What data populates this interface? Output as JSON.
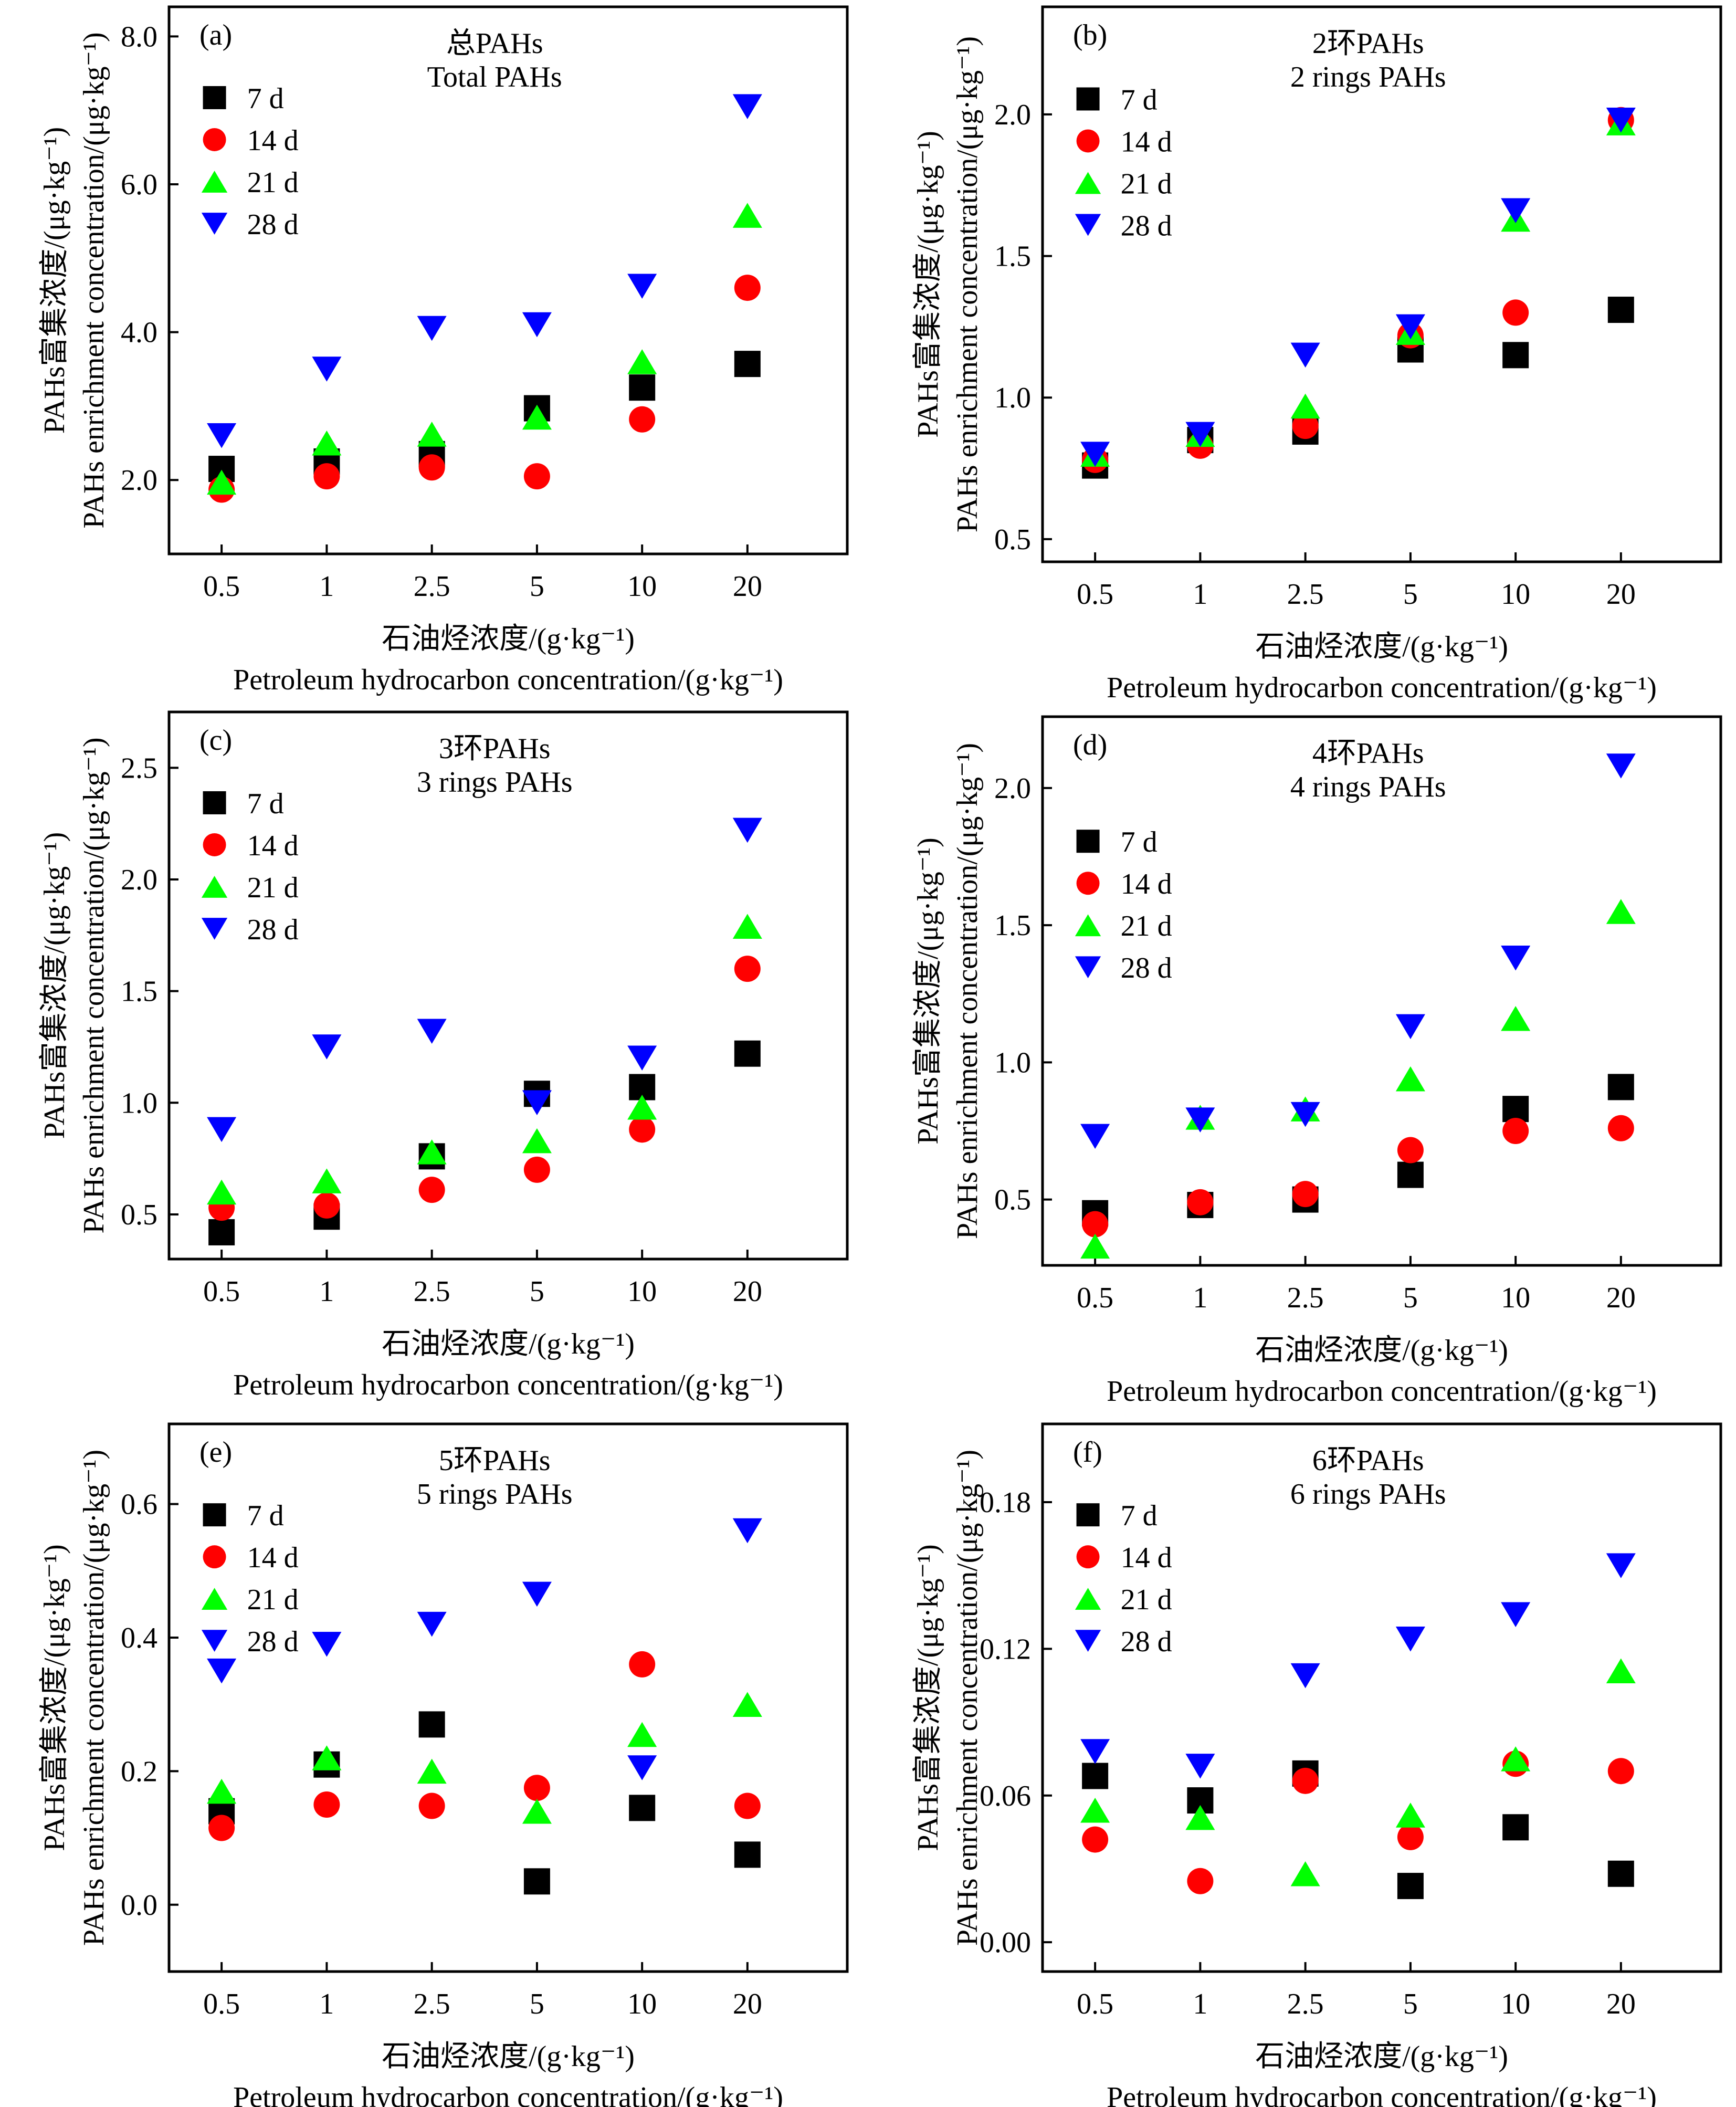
{
  "x_axis": {
    "title_zh": "石油烃浓度/(g·kg⁻¹)",
    "title_en": "Petroleum hydrocarbon concentration/(g·kg⁻¹)"
  },
  "y_axis": {
    "title_zh": "PAHs富集浓度/(μg·kg⁻¹)",
    "title_en": "PAHs enrichment concentration/(μg·kg⁻¹)"
  },
  "legend": [
    "7 d",
    "14 d",
    "21 d",
    "28 d"
  ],
  "series_style": [
    {
      "name": "7 d",
      "marker": "square",
      "color": "#000000"
    },
    {
      "name": "14 d",
      "marker": "circle",
      "color": "#ff0000"
    },
    {
      "name": "21 d",
      "marker": "triangle-up",
      "color": "#00ff00"
    },
    {
      "name": "28 d",
      "marker": "triangle-down",
      "color": "#0000ff"
    }
  ],
  "chart_data": [
    {
      "type": "scatter",
      "panel": "(a)",
      "title_zh": "总PAHs",
      "title_en": "Total PAHs",
      "categories": [
        "0.5",
        "1",
        "2.5",
        "5",
        "10",
        "20"
      ],
      "ylim": [
        1.0,
        8.4
      ],
      "yticks": [
        "2.0",
        "4.0",
        "6.0",
        "8.0"
      ],
      "series": [
        {
          "name": "7 d",
          "values": [
            2.15,
            2.25,
            2.35,
            2.97,
            3.25,
            3.57
          ]
        },
        {
          "name": "14 d",
          "values": [
            1.87,
            2.05,
            2.17,
            2.05,
            2.82,
            4.6
          ]
        },
        {
          "name": "21 d",
          "values": [
            1.97,
            2.5,
            2.62,
            2.85,
            3.6,
            5.58
          ]
        },
        {
          "name": "28 d",
          "values": [
            2.6,
            3.5,
            4.05,
            4.1,
            4.62,
            7.05
          ]
        }
      ]
    },
    {
      "type": "scatter",
      "panel": "(b)",
      "title_zh": "2环PAHs",
      "title_en": "2 rings PAHs",
      "categories": [
        "0.5",
        "1",
        "2.5",
        "5",
        "10",
        "20"
      ],
      "ylim": [
        0.42,
        2.38
      ],
      "yticks": [
        "0.5",
        "1.0",
        "1.5",
        "2.0"
      ],
      "series": [
        {
          "name": "7 d",
          "values": [
            0.76,
            0.85,
            0.88,
            1.17,
            1.15,
            1.31
          ]
        },
        {
          "name": "14 d",
          "values": [
            0.78,
            0.83,
            0.9,
            1.22,
            1.3,
            1.98
          ]
        },
        {
          "name": "21 d",
          "values": [
            0.8,
            0.87,
            0.97,
            1.23,
            1.63,
            1.97
          ]
        },
        {
          "name": "28 d",
          "values": [
            0.8,
            0.87,
            1.15,
            1.25,
            1.66,
            1.98
          ]
        }
      ]
    },
    {
      "type": "scatter",
      "panel": "(c)",
      "title_zh": "3环PAHs",
      "title_en": "3 rings PAHs",
      "categories": [
        "0.5",
        "1",
        "2.5",
        "5",
        "10",
        "20"
      ],
      "ylim": [
        0.3,
        2.75
      ],
      "yticks": [
        "0.5",
        "1.0",
        "1.5",
        "2.0",
        "2.5"
      ],
      "series": [
        {
          "name": "7 d",
          "values": [
            0.42,
            0.49,
            0.76,
            1.04,
            1.07,
            1.22
          ]
        },
        {
          "name": "14 d",
          "values": [
            0.53,
            0.54,
            0.61,
            0.7,
            0.88,
            1.6
          ]
        },
        {
          "name": "21 d",
          "values": [
            0.6,
            0.65,
            0.78,
            0.83,
            0.98,
            1.79
          ]
        },
        {
          "name": "28 d",
          "values": [
            0.88,
            1.25,
            1.32,
            1.0,
            1.2,
            2.22
          ]
        }
      ]
    },
    {
      "type": "scatter",
      "panel": "(d)",
      "title_zh": "4环PAHs",
      "title_en": "4 rings PAHs",
      "categories": [
        "0.5",
        "1",
        "2.5",
        "5",
        "10",
        "20"
      ],
      "ylim": [
        0.26,
        2.26
      ],
      "yticks": [
        "0.5",
        "1.0",
        "1.5",
        "2.0"
      ],
      "series": [
        {
          "name": "7 d",
          "values": [
            0.45,
            0.48,
            0.5,
            0.59,
            0.83,
            0.91
          ]
        },
        {
          "name": "14 d",
          "values": [
            0.41,
            0.49,
            0.52,
            0.68,
            0.75,
            0.76
          ]
        },
        {
          "name": "21 d",
          "values": [
            0.33,
            0.8,
            0.83,
            0.94,
            1.16,
            1.55
          ]
        },
        {
          "name": "28 d",
          "values": [
            0.73,
            0.79,
            0.81,
            1.13,
            1.38,
            2.08
          ]
        }
      ]
    },
    {
      "type": "scatter",
      "panel": "(e)",
      "title_zh": "5环PAHs",
      "title_en": "5 rings PAHs",
      "categories": [
        "0.5",
        "1",
        "2.5",
        "5",
        "10",
        "20"
      ],
      "ylim": [
        -0.1,
        0.72
      ],
      "yticks": [
        "0.0",
        "0.2",
        "0.4",
        "0.6"
      ],
      "series": [
        {
          "name": "7 d",
          "values": [
            0.14,
            0.21,
            0.27,
            0.035,
            0.145,
            0.075
          ]
        },
        {
          "name": "14 d",
          "values": [
            0.115,
            0.15,
            0.148,
            0.175,
            0.36,
            0.148
          ]
        },
        {
          "name": "21 d",
          "values": [
            0.17,
            0.22,
            0.2,
            0.14,
            0.255,
            0.3
          ]
        },
        {
          "name": "28 d",
          "values": [
            0.35,
            0.39,
            0.42,
            0.465,
            0.205,
            0.56
          ]
        }
      ]
    },
    {
      "type": "scatter",
      "panel": "(f)",
      "title_zh": "6环PAHs",
      "title_en": "6 rings PAHs",
      "categories": [
        "0.5",
        "1",
        "2.5",
        "5",
        "10",
        "20"
      ],
      "ylim": [
        -0.012,
        0.212
      ],
      "yticks": [
        "0.00",
        "0.06",
        "0.12",
        "0.18"
      ],
      "series": [
        {
          "name": "7 d",
          "values": [
            0.068,
            0.058,
            0.069,
            0.023,
            0.047,
            0.028
          ]
        },
        {
          "name": "14 d",
          "values": [
            0.042,
            0.025,
            0.066,
            0.043,
            0.073,
            0.07
          ]
        },
        {
          "name": "21 d",
          "values": [
            0.054,
            0.051,
            0.028,
            0.052,
            0.075,
            0.111
          ]
        },
        {
          "name": "28 d",
          "values": [
            0.078,
            0.072,
            0.109,
            0.124,
            0.134,
            0.154
          ]
        }
      ]
    }
  ]
}
